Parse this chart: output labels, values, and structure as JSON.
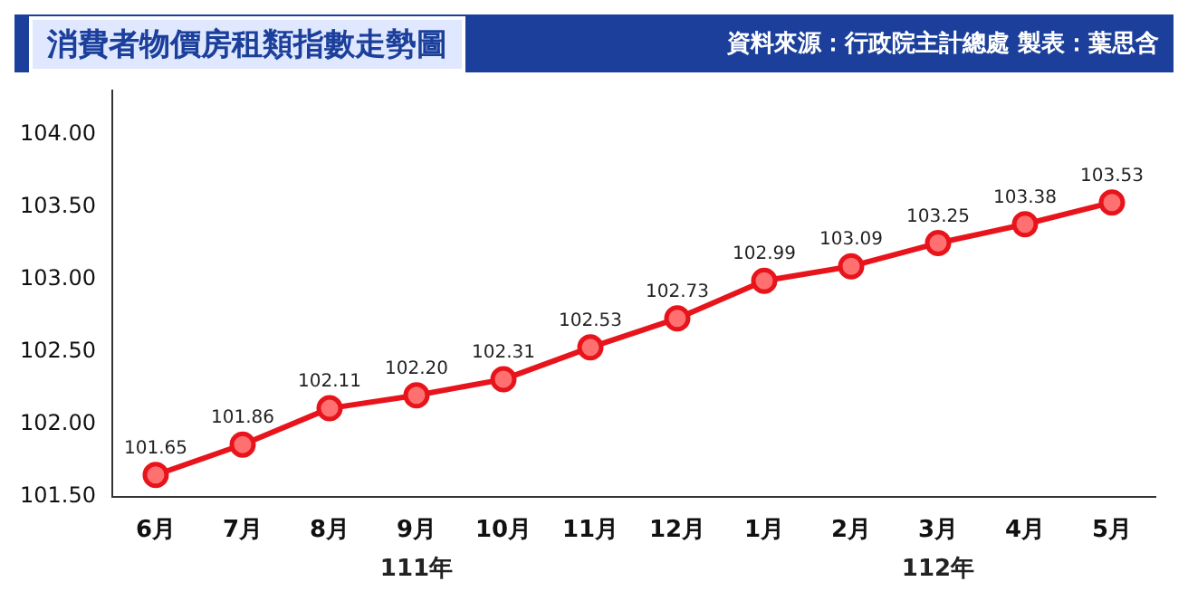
{
  "chart_data": {
    "type": "line",
    "title": "消費者物價房租類指數走勢圖",
    "subtitle": "資料來源：行政院主計總處  製表：葉思含",
    "categories": [
      "6月",
      "7月",
      "8月",
      "9月",
      "10月",
      "11月",
      "12月",
      "1月",
      "2月",
      "3月",
      "4月",
      "5月"
    ],
    "series": [
      {
        "color": "#e8141c",
        "values": [
          101.65,
          101.86,
          102.11,
          102.2,
          102.31,
          102.53,
          102.73,
          102.99,
          103.09,
          103.25,
          103.38,
          103.53
        ],
        "value_labels": [
          "101.65",
          "101.86",
          "102.11",
          "102.20",
          "102.31",
          "102.53",
          "102.73",
          "102.99",
          "103.09",
          "103.25",
          "103.38",
          "103.53"
        ]
      }
    ],
    "ylim": [
      101.5,
      104.3
    ],
    "yticks": [
      {
        "value": 101.5,
        "label": "101.50"
      },
      {
        "value": 102,
        "label": "102.00"
      },
      {
        "value": 102.5,
        "label": "102.50"
      },
      {
        "value": 103,
        "label": "103.00"
      },
      {
        "value": 103.5,
        "label": "103.50"
      },
      {
        "value": 104,
        "label": "104.00"
      }
    ],
    "marker": "circle",
    "line_style": "solid",
    "legend": false,
    "annotations": [
      "111年",
      "112年"
    ]
  }
}
